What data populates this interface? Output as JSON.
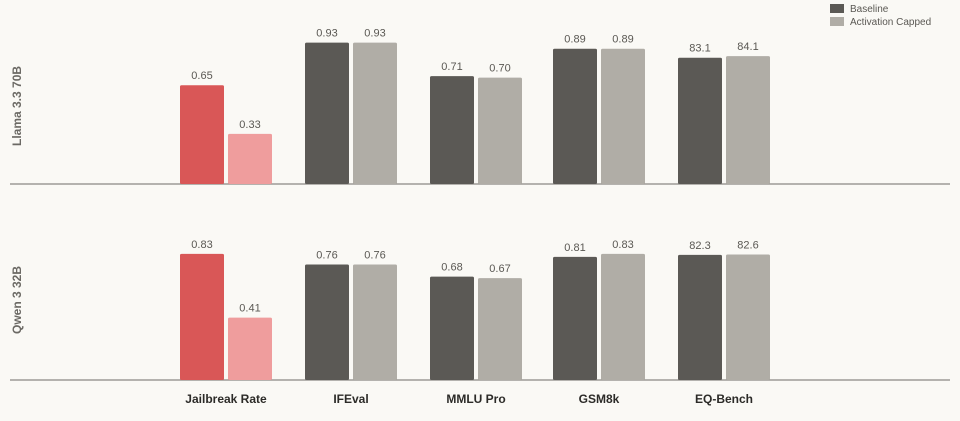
{
  "chart_data": {
    "type": "bar",
    "legend": {
      "placement": "top-right",
      "entries": [
        {
          "name": "Baseline",
          "color": "#5b5955"
        },
        {
          "name": "Activation Capped",
          "color": "#b0ada6"
        }
      ]
    },
    "categories": [
      "Jailbreak Rate",
      "IFEval",
      "MMLU Pro",
      "GSM8k",
      "EQ-Bench"
    ],
    "highlight": {
      "category": "Jailbreak Rate",
      "baseline_color": "#d95757",
      "capped_color": "#ef9d9d"
    },
    "panels": [
      {
        "label": "Llama 3.3 70B",
        "series": [
          {
            "name": "Baseline",
            "values": [
              0.65,
              0.93,
              0.71,
              0.89,
              83.1
            ],
            "labels": [
              "0.65",
              "0.93",
              "0.71",
              "0.89",
              "83.1"
            ]
          },
          {
            "name": "Activation Capped",
            "values": [
              0.33,
              0.93,
              0.7,
              0.89,
              84.1
            ],
            "labels": [
              "0.33",
              "0.93",
              "0.70",
              "0.89",
              "84.1"
            ]
          }
        ]
      },
      {
        "label": "Qwen 3 32B",
        "series": [
          {
            "name": "Baseline",
            "values": [
              0.83,
              0.76,
              0.68,
              0.81,
              82.3
            ],
            "labels": [
              "0.83",
              "0.76",
              "0.68",
              "0.81",
              "82.3"
            ]
          },
          {
            "name": "Activation Capped",
            "values": [
              0.41,
              0.76,
              0.67,
              0.83,
              82.6
            ],
            "labels": [
              "0.41",
              "0.76",
              "0.67",
              "0.83",
              "82.6"
            ]
          }
        ]
      }
    ],
    "category_scale_max": [
      1.0,
      1.0,
      1.0,
      1.0,
      100
    ],
    "grid": false
  }
}
